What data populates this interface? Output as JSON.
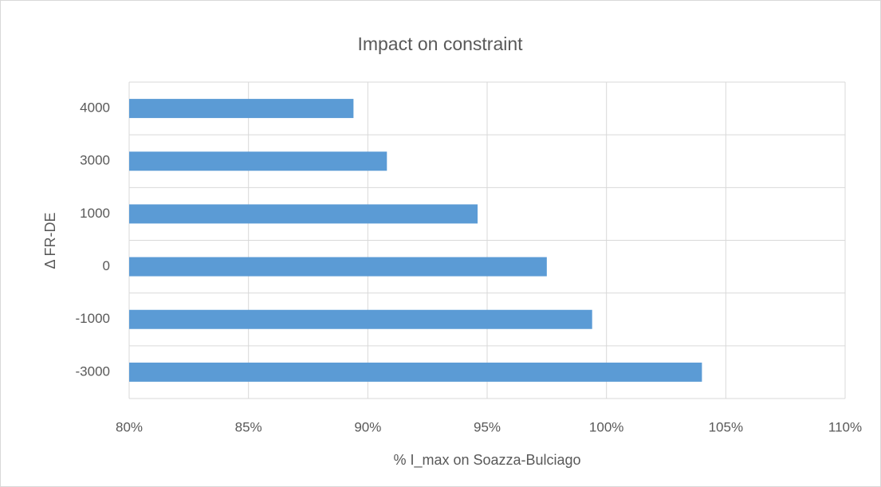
{
  "chart_data": {
    "type": "bar",
    "orientation": "horizontal",
    "title": "Impact on constraint",
    "x_label": "% I_max on Soazza-Bulciago",
    "y_label": "Δ FR-DE",
    "categories": [
      "4000",
      "3000",
      "1000",
      "0",
      "-1000",
      "-3000"
    ],
    "values": [
      89.4,
      90.8,
      94.6,
      97.5,
      99.4,
      104.0
    ],
    "color": "#5b9bd5",
    "xlim": [
      80,
      110
    ],
    "xticks": [
      {
        "value": 80,
        "label": "80%"
      },
      {
        "value": 85,
        "label": "85%"
      },
      {
        "value": 90,
        "label": "90%"
      },
      {
        "value": 95,
        "label": "95%"
      },
      {
        "value": 100,
        "label": "100%"
      },
      {
        "value": 105,
        "label": "105%"
      },
      {
        "value": 110,
        "label": "110%"
      }
    ],
    "grid": true
  }
}
